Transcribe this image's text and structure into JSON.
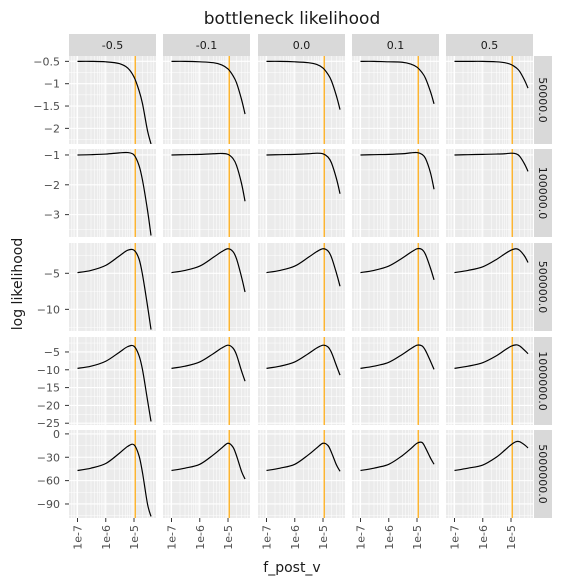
{
  "chart_data": {
    "type": "line",
    "title": "bottleneck likelihood",
    "xlabel": "f_post_v",
    "ylabel": "log likelihood",
    "x_scale": "log10",
    "x_tick_labels": [
      "1e-7",
      "1e-6",
      "1e-5"
    ],
    "x_tick_values": [
      1e-07,
      1e-06,
      1e-05
    ],
    "xlim": [
      5e-08,
      6e-05
    ],
    "grid": true,
    "legend": "none",
    "colors": {
      "panel_bg": "#ebebeb",
      "grid": "#ffffff",
      "strip_bg": "#d9d9d9",
      "line": "#000000",
      "vline": "#ffa500",
      "tick_label": "#4d4d4d",
      "tick": "#333333"
    },
    "vline_x": 1.1e-05,
    "col_facets": [
      "-0.5",
      "-0.1",
      "0.0",
      "0.1",
      "0.5"
    ],
    "row_facets": [
      {
        "label": "50000.0",
        "ylim": [
          -2.35,
          -0.38
        ],
        "y_ticks": [
          -0.5,
          -1,
          -1.5,
          -2
        ],
        "y_tick_labels": [
          "−0.5",
          "−1",
          "−1.5",
          "−2"
        ]
      },
      {
        "label": "100000.0",
        "ylim": [
          -3.75,
          -0.8
        ],
        "y_ticks": [
          -1,
          -2,
          -3
        ],
        "y_tick_labels": [
          "−1",
          "−2",
          "−3"
        ]
      },
      {
        "label": "500000.0",
        "ylim": [
          -13.0,
          -0.8
        ],
        "y_ticks": [
          -5,
          -10
        ],
        "y_tick_labels": [
          "−5",
          "−10"
        ]
      },
      {
        "label": "1000000.0",
        "ylim": [
          -25.5,
          -0.8
        ],
        "y_ticks": [
          -5,
          -10,
          -15,
          -20,
          -25
        ],
        "y_tick_labels": [
          "−5",
          "−10",
          "−15",
          "−20",
          "−25"
        ]
      },
      {
        "label": "5000000.0",
        "ylim": [
          -108,
          5
        ],
        "y_ticks": [
          0,
          -30,
          -60,
          -90
        ],
        "y_tick_labels": [
          "0",
          "−30",
          "−60",
          "−90"
        ]
      }
    ],
    "x": [
      1e-07,
      3e-07,
      1e-06,
      3e-06,
      6e-06,
      1e-05,
      1.5e-05,
      2e-05,
      3e-05,
      4e-05
    ],
    "series": [
      {
        "row": "50000.0",
        "col": "-0.5",
        "values": [
          -0.5,
          -0.5,
          -0.51,
          -0.55,
          -0.65,
          -0.85,
          -1.15,
          -1.45,
          -2.05,
          -2.35
        ]
      },
      {
        "row": "50000.0",
        "col": "-0.1",
        "values": [
          -0.5,
          -0.5,
          -0.51,
          -0.53,
          -0.58,
          -0.67,
          -0.82,
          -0.98,
          -1.35,
          -1.68
        ]
      },
      {
        "row": "50000.0",
        "col": "0.0",
        "values": [
          -0.5,
          -0.5,
          -0.51,
          -0.53,
          -0.57,
          -0.65,
          -0.79,
          -0.94,
          -1.28,
          -1.58
        ]
      },
      {
        "row": "50000.0",
        "col": "0.1",
        "values": [
          -0.5,
          -0.5,
          -0.51,
          -0.52,
          -0.56,
          -0.63,
          -0.75,
          -0.88,
          -1.18,
          -1.45
        ]
      },
      {
        "row": "50000.0",
        "col": "0.5",
        "values": [
          -0.5,
          -0.5,
          -0.5,
          -0.51,
          -0.53,
          -0.57,
          -0.64,
          -0.72,
          -0.92,
          -1.1
        ]
      },
      {
        "row": "100000.0",
        "col": "-0.5",
        "values": [
          -1.0,
          -0.99,
          -0.97,
          -0.93,
          -0.92,
          -1.0,
          -1.35,
          -1.85,
          -2.85,
          -3.7
        ]
      },
      {
        "row": "100000.0",
        "col": "-0.1",
        "values": [
          -1.0,
          -0.99,
          -0.98,
          -0.96,
          -0.95,
          -0.98,
          -1.12,
          -1.35,
          -1.95,
          -2.55
        ]
      },
      {
        "row": "100000.0",
        "col": "0.0",
        "values": [
          -1.0,
          -0.99,
          -0.98,
          -0.96,
          -0.94,
          -0.96,
          -1.07,
          -1.27,
          -1.8,
          -2.3
        ]
      },
      {
        "row": "100000.0",
        "col": "0.1",
        "values": [
          -1.0,
          -0.99,
          -0.98,
          -0.96,
          -0.93,
          -0.92,
          -0.98,
          -1.12,
          -1.6,
          -2.15
        ]
      },
      {
        "row": "100000.0",
        "col": "0.5",
        "values": [
          -1.0,
          -0.99,
          -0.98,
          -0.97,
          -0.96,
          -0.94,
          -0.96,
          -1.04,
          -1.3,
          -1.55
        ]
      },
      {
        "row": "500000.0",
        "col": "-0.5",
        "values": [
          -4.9,
          -4.6,
          -3.9,
          -2.6,
          -1.8,
          -1.8,
          -3.0,
          -5.2,
          -9.5,
          -12.8
        ]
      },
      {
        "row": "500000.0",
        "col": "-0.1",
        "values": [
          -4.9,
          -4.6,
          -4.0,
          -2.8,
          -2.0,
          -1.6,
          -2.0,
          -3.0,
          -5.5,
          -7.6
        ]
      },
      {
        "row": "500000.0",
        "col": "0.0",
        "values": [
          -4.9,
          -4.6,
          -4.0,
          -2.8,
          -2.0,
          -1.6,
          -1.9,
          -2.8,
          -5.0,
          -6.8
        ]
      },
      {
        "row": "500000.0",
        "col": "0.1",
        "values": [
          -4.9,
          -4.6,
          -4.0,
          -2.9,
          -2.1,
          -1.6,
          -1.7,
          -2.4,
          -4.3,
          -5.9
        ]
      },
      {
        "row": "500000.0",
        "col": "0.5",
        "values": [
          -4.9,
          -4.6,
          -4.1,
          -3.1,
          -2.3,
          -1.8,
          -1.6,
          -1.8,
          -2.6,
          -3.5
        ]
      },
      {
        "row": "1000000.0",
        "col": "-0.5",
        "values": [
          -9.6,
          -9.0,
          -7.6,
          -5.1,
          -3.5,
          -3.4,
          -6.0,
          -10.0,
          -18.5,
          -24.5
        ]
      },
      {
        "row": "1000000.0",
        "col": "-0.1",
        "values": [
          -9.6,
          -9.0,
          -7.8,
          -5.5,
          -3.9,
          -3.1,
          -3.9,
          -5.8,
          -10.3,
          -13.2
        ]
      },
      {
        "row": "1000000.0",
        "col": "0.0",
        "values": [
          -9.6,
          -9.0,
          -7.8,
          -5.5,
          -3.9,
          -3.1,
          -3.6,
          -5.2,
          -8.9,
          -11.5
        ]
      },
      {
        "row": "1000000.0",
        "col": "0.1",
        "values": [
          -9.6,
          -9.0,
          -7.9,
          -5.7,
          -4.1,
          -3.1,
          -3.3,
          -4.6,
          -7.6,
          -9.9
        ]
      },
      {
        "row": "1000000.0",
        "col": "0.5",
        "values": [
          -9.6,
          -9.0,
          -8.0,
          -6.1,
          -4.5,
          -3.4,
          -3.0,
          -3.3,
          -4.5,
          -5.5
        ]
      },
      {
        "row": "5000000.0",
        "col": "-0.5",
        "values": [
          -47,
          -44,
          -38,
          -25,
          -16,
          -14,
          -28,
          -50,
          -90,
          -106
        ]
      },
      {
        "row": "5000000.0",
        "col": "-0.1",
        "values": [
          -47,
          -44,
          -39,
          -27,
          -18,
          -12,
          -17,
          -28,
          -48,
          -58
        ]
      },
      {
        "row": "5000000.0",
        "col": "0.0",
        "values": [
          -47,
          -44,
          -39,
          -27,
          -18,
          -12,
          -15,
          -24,
          -40,
          -48
        ]
      },
      {
        "row": "5000000.0",
        "col": "0.1",
        "values": [
          -47,
          -44,
          -39,
          -28,
          -19,
          -12,
          -11,
          -18,
          -31,
          -39
        ]
      },
      {
        "row": "5000000.0",
        "col": "0.5",
        "values": [
          -47,
          -44,
          -40,
          -30,
          -21,
          -14,
          -10,
          -10,
          -14,
          -18
        ]
      }
    ]
  }
}
